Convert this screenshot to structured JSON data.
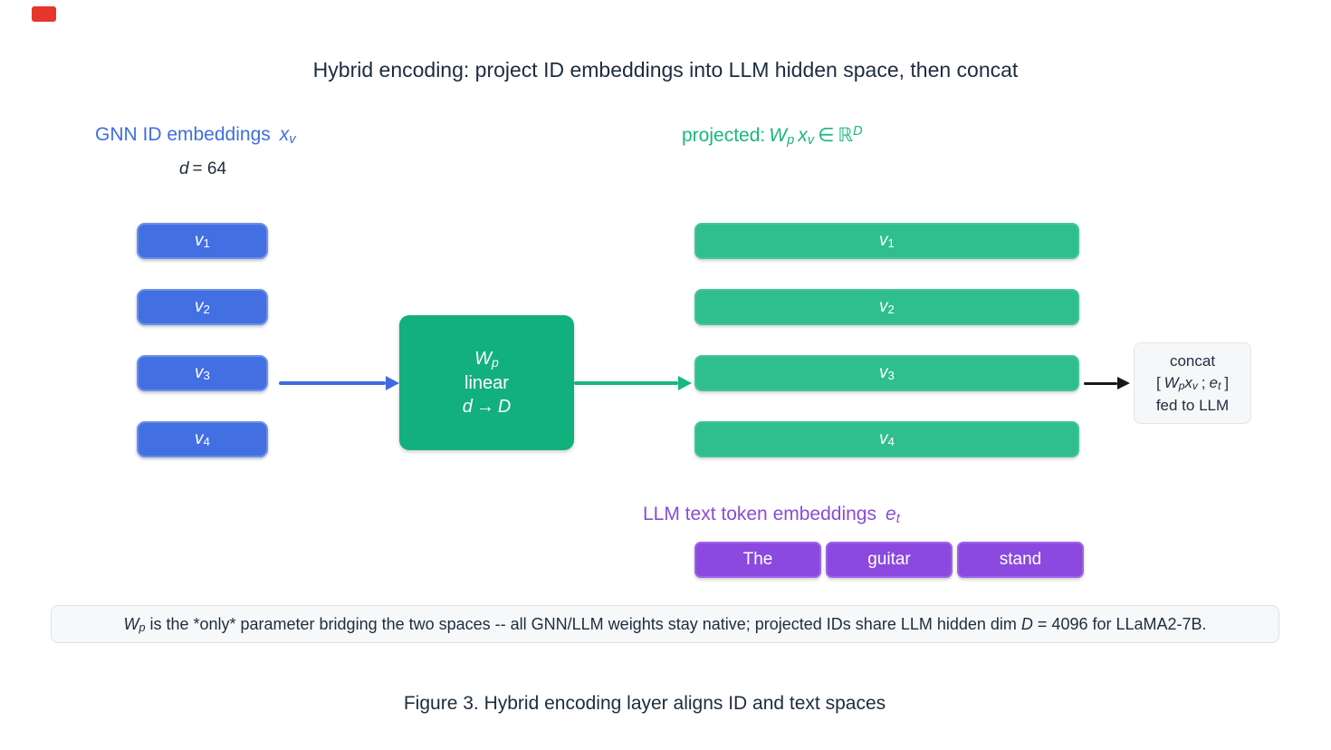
{
  "marker": {
    "visible": true,
    "color": "#e5372e"
  },
  "title": "Hybrid encoding: project ID embeddings into LLM hidden space, then concat",
  "gnn": {
    "label": "GNN ID embeddings",
    "var": "x",
    "var_sub": "v",
    "dim_var": "d",
    "dim_value": "= 64",
    "boxes": [
      {
        "var": "v",
        "sub": "1"
      },
      {
        "var": "v",
        "sub": "2"
      },
      {
        "var": "v",
        "sub": "3"
      },
      {
        "var": "v",
        "sub": "4"
      }
    ]
  },
  "projector": {
    "w": "W",
    "w_sub": "p",
    "type_label": "linear",
    "from": "d",
    "arrow": "→",
    "to": "D"
  },
  "projected": {
    "label_prefix": "projected:",
    "w": "W",
    "w_sub": "p",
    "x": "x",
    "x_sub": "v",
    "element_of": "∈",
    "space": "ℝ",
    "space_sup": "D",
    "bars": [
      {
        "var": "v",
        "sub": "1"
      },
      {
        "var": "v",
        "sub": "2"
      },
      {
        "var": "v",
        "sub": "3"
      },
      {
        "var": "v",
        "sub": "4"
      }
    ]
  },
  "concat": {
    "line1": "concat",
    "open": "[",
    "w": "W",
    "w_sub": "p",
    "x": "x",
    "x_sub": "v",
    "sep": ";",
    "e": "e",
    "e_sub": "t",
    "close": "]",
    "line3": "fed to LLM"
  },
  "llm": {
    "label": "LLM text token embeddings",
    "var": "e",
    "var_sub": "t",
    "tokens": [
      "The",
      "guitar",
      "stand"
    ]
  },
  "note": {
    "w": "W",
    "w_sub": "p",
    "text1": " is the *only* parameter bridging the two spaces -- all GNN/LLM weights stay native; projected IDs share LLM hidden dim ",
    "d_var": "D",
    "text2": " = 4096 for LLaMA2-7B."
  },
  "caption": "Figure 3. Hybrid encoding layer aligns ID and text spaces",
  "colors": {
    "blue_box": "#4270e2",
    "blue_text": "#3f6ee0",
    "deep_green": "#12b07c",
    "light_green": "#2fbe8e",
    "green_text": "#16b97d",
    "purple_box": "#8b49e0",
    "purple_text": "#8a4bd9",
    "dark_text": "#1e2d3e",
    "note_bg": "#f6f8fa",
    "concat_bg": "#f5f7f9"
  }
}
